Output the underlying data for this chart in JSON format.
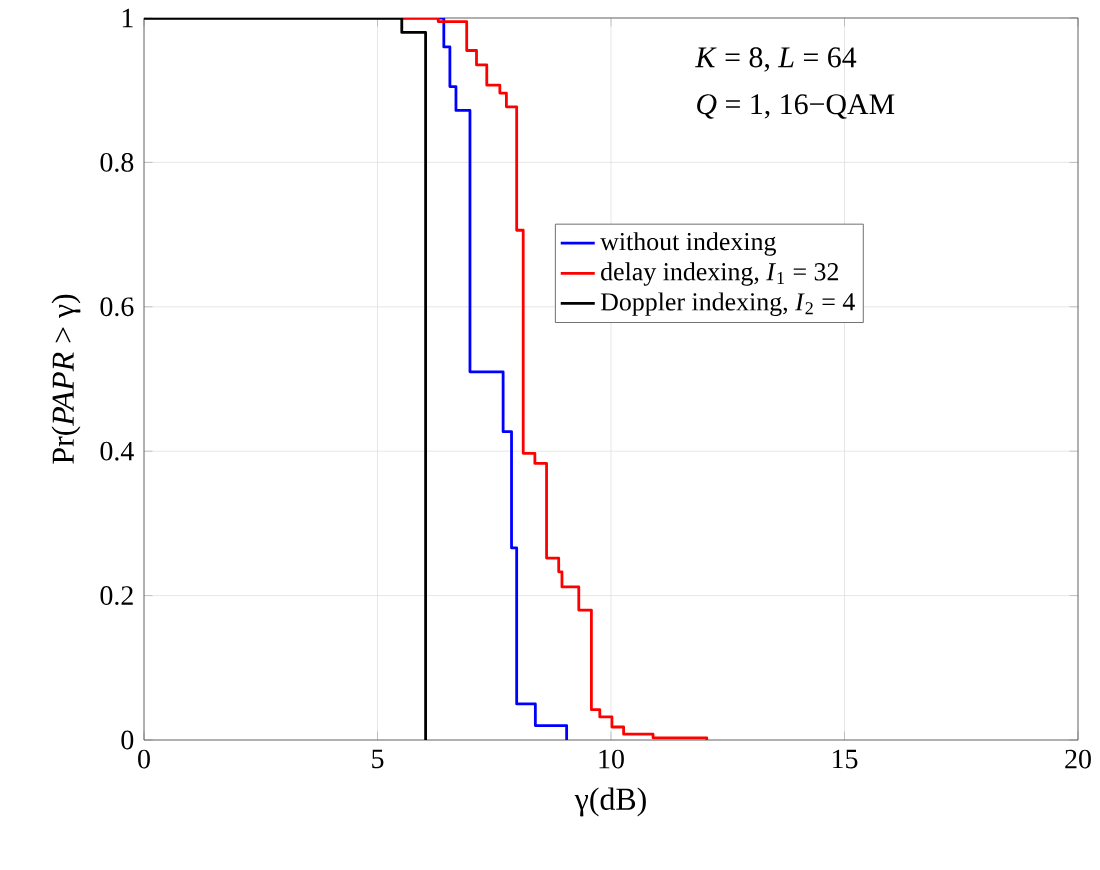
{
  "chart_data": {
    "type": "step",
    "xlabel": "γ(dB)",
    "ylabel": "Pr(*PAPR* > γ)",
    "annotations": [
      "*K* = 8, *L* = 64",
      "*Q* = 1, 16−QAM"
    ],
    "xlim": [
      0,
      20
    ],
    "xticks": [
      0,
      5,
      10,
      15,
      20
    ],
    "ylim": [
      0,
      1
    ],
    "yticks": [
      0,
      0.2,
      0.4,
      0.6,
      0.8,
      1
    ],
    "grid": true,
    "legend": "right",
    "marker": "none",
    "line_style": "solid",
    "series": [
      {
        "name": "without indexing",
        "color": "#0000ff",
        "x": [
          0,
          6.42,
          6.55,
          6.68,
          6.98,
          7.69,
          7.87,
          7.98,
          8.38,
          9.05
        ],
        "values": [
          1,
          0.96,
          0.905,
          0.872,
          0.51,
          0.427,
          0.266,
          0.05,
          0.02,
          0
        ]
      },
      {
        "name": "delay indexing, *I*$_{1}$ = 32",
        "color": "#ff0000",
        "x": [
          0,
          6.3,
          6.91,
          7.12,
          7.34,
          7.62,
          7.76,
          7.98,
          8.12,
          8.37,
          8.62,
          8.88,
          8.95,
          9.31,
          9.58,
          9.76,
          10.02,
          10.27,
          10.9,
          12.05
        ],
        "values": [
          1,
          0.995,
          0.955,
          0.935,
          0.907,
          0.896,
          0.877,
          0.706,
          0.397,
          0.383,
          0.252,
          0.233,
          0.212,
          0.18,
          0.042,
          0.032,
          0.018,
          0.008,
          0.003,
          0
        ]
      },
      {
        "name": "Doppler indexing, *I*$_{2}$ = 4",
        "color": "#000000",
        "x": [
          0,
          5.52,
          6.03
        ],
        "values": [
          1,
          0.98,
          0
        ]
      }
    ]
  }
}
